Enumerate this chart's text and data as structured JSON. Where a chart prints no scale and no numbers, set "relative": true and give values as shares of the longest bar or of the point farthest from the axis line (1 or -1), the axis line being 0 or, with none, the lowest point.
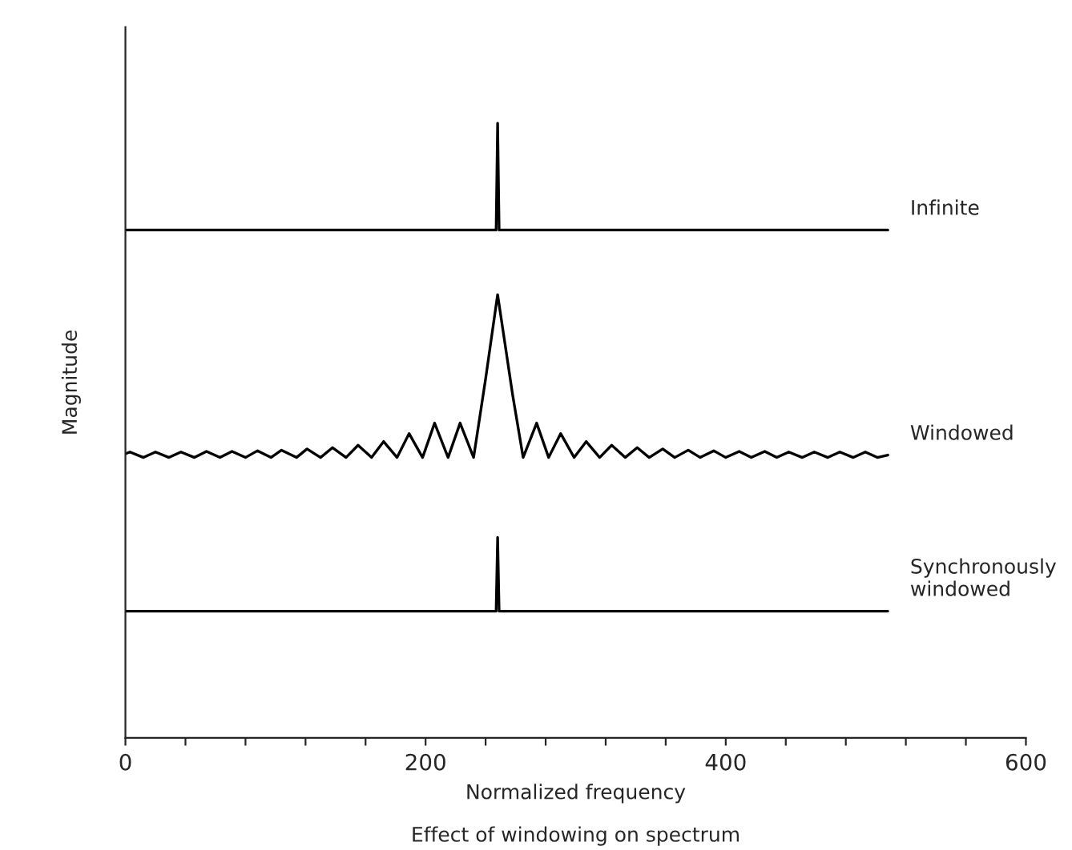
{
  "chart_data": {
    "type": "line",
    "relative": true,
    "xlabel": "Normalized frequency",
    "ylabel": "Magnitude",
    "annotations": [
      "Effect of windowing on spectrum"
    ],
    "xlim": [
      0,
      600
    ],
    "xticks": [
      0,
      {
        "value": 40,
        "label": null
      },
      {
        "value": 80,
        "label": null
      },
      {
        "value": 120,
        "label": null
      },
      {
        "value": 160,
        "label": null
      },
      200,
      {
        "value": 240,
        "label": null
      },
      {
        "value": 280,
        "label": null
      },
      {
        "value": 320,
        "label": null
      },
      {
        "value": 360,
        "label": null
      },
      400,
      {
        "value": 440,
        "label": null
      },
      {
        "value": 480,
        "label": null
      },
      {
        "value": 520,
        "label": null
      },
      {
        "value": 560,
        "label": null
      },
      600
    ],
    "grid": false,
    "legend": false,
    "marker": "none",
    "line_style": "solid",
    "series": [
      {
        "name": "Infinite",
        "color": "#000000",
        "x": [
          0,
          247,
          248,
          249,
          508
        ],
        "values": [
          0.826,
          0.826,
          1,
          0.826,
          0.826
        ]
      },
      {
        "name": "Windowed",
        "color": "#000000",
        "x": [
          0,
          3,
          12,
          20,
          29,
          37,
          46,
          54,
          63,
          71,
          80,
          88,
          97,
          104,
          114,
          121,
          130,
          138,
          147,
          155,
          164,
          172,
          181,
          189,
          198,
          206,
          215,
          223,
          232,
          240,
          248,
          258,
          265,
          274,
          282,
          290,
          299,
          307,
          316,
          324,
          333,
          341,
          349,
          358,
          366,
          375,
          383,
          392,
          400,
          409,
          417,
          426,
          434,
          442,
          451,
          459,
          468,
          476,
          485,
          493,
          501,
          508
        ],
        "values": [
          0.462,
          0.465,
          0.456,
          0.465,
          0.456,
          0.465,
          0.456,
          0.466,
          0.456,
          0.466,
          0.456,
          0.467,
          0.456,
          0.468,
          0.456,
          0.47,
          0.456,
          0.472,
          0.456,
          0.476,
          0.456,
          0.482,
          0.456,
          0.495,
          0.456,
          0.512,
          0.456,
          0.512,
          0.456,
          0.584,
          0.721,
          0.558,
          0.456,
          0.512,
          0.456,
          0.495,
          0.456,
          0.482,
          0.456,
          0.476,
          0.456,
          0.472,
          0.456,
          0.47,
          0.456,
          0.468,
          0.456,
          0.467,
          0.456,
          0.466,
          0.456,
          0.466,
          0.456,
          0.465,
          0.456,
          0.465,
          0.456,
          0.465,
          0.456,
          0.465,
          0.456,
          0.46
        ]
      },
      {
        "name": "Synchronously\nwindowed",
        "color": "#000000",
        "x": [
          0,
          247,
          248,
          249,
          508
        ],
        "values": [
          0.206,
          0.206,
          0.326,
          0.206,
          0.206
        ]
      }
    ]
  }
}
